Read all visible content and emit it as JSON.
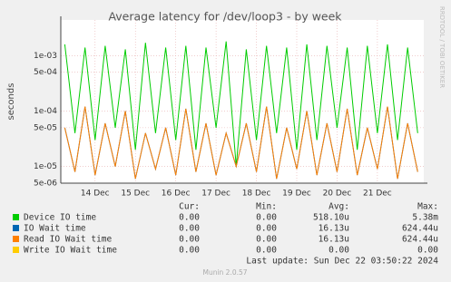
{
  "chart_data": {
    "type": "line",
    "title": "Average latency for /dev/loop3 - by week",
    "y_label": "seconds",
    "side_label": "RRDTOOL / TOBI OETIKER",
    "log_scale": true,
    "grid": true,
    "xlim": [
      13.15,
      22.15
    ],
    "xticks": [
      {
        "value": 14,
        "label": "14 Dec"
      },
      {
        "value": 15,
        "label": "15 Dec"
      },
      {
        "value": 16,
        "label": "16 Dec"
      },
      {
        "value": 17,
        "label": "17 Dec"
      },
      {
        "value": 18,
        "label": "18 Dec"
      },
      {
        "value": 19,
        "label": "19 Dec"
      },
      {
        "value": 20,
        "label": "20 Dec"
      },
      {
        "value": 21,
        "label": "21 Dec"
      }
    ],
    "ylim": [
      5e-06,
      0.0044
    ],
    "yticks": [
      {
        "value": 5e-06,
        "label": "5e-06"
      },
      {
        "value": 1e-05,
        "label": "1e-05"
      },
      {
        "value": 5e-05,
        "label": "5e-05"
      },
      {
        "value": 0.0001,
        "label": "1e-04"
      },
      {
        "value": 0.0005,
        "label": "5e-04"
      },
      {
        "value": 0.001,
        "label": "1e-03"
      }
    ],
    "x": [
      13.25,
      13.5,
      13.75,
      14,
      14.25,
      14.5,
      14.75,
      15,
      15.25,
      15.5,
      15.75,
      16,
      16.25,
      16.5,
      16.75,
      17,
      17.25,
      17.5,
      17.75,
      18,
      18.25,
      18.5,
      18.75,
      19,
      19.25,
      19.5,
      19.75,
      20,
      20.25,
      20.5,
      20.75,
      21,
      21.25,
      21.5,
      21.75,
      22
    ],
    "stat_headers": [
      "Cur:",
      "Min:",
      "Avg:",
      "Max:"
    ],
    "series": [
      {
        "name": "Device IO time",
        "color": "#00cc00",
        "stats": [
          "0.00",
          "0.00",
          "518.10u",
          "5.38m"
        ],
        "values": [
          0.0016,
          4e-05,
          0.0014,
          3e-05,
          0.0015,
          5e-05,
          0.0013,
          2e-05,
          0.0017,
          4e-05,
          0.0014,
          3e-05,
          0.0015,
          2e-05,
          0.0014,
          5e-05,
          0.0018,
          1e-05,
          0.0013,
          3e-05,
          0.0015,
          4e-05,
          0.0014,
          2e-05,
          0.0016,
          3e-05,
          0.0015,
          5e-05,
          0.0014,
          2e-05,
          0.0015,
          4e-05,
          0.0016,
          3e-05,
          0.0014,
          4e-05
        ]
      },
      {
        "name": "IO Wait time",
        "color": "#0066b3",
        "stats": [
          "0.00",
          "0.00",
          "16.13u",
          "624.44u"
        ],
        "values": [
          5e-05,
          8e-06,
          0.00012,
          7e-06,
          6e-05,
          1e-05,
          0.0001,
          6e-06,
          4e-05,
          9e-06,
          5e-05,
          7e-06,
          0.00011,
          8e-06,
          6e-05,
          7e-06,
          4e-05,
          1e-05,
          6e-05,
          8e-06,
          0.00012,
          6e-06,
          5e-05,
          9e-06,
          0.0001,
          7e-06,
          6e-05,
          8e-06,
          0.00011,
          7e-06,
          5e-05,
          9e-06,
          0.00012,
          6e-06,
          6e-05,
          8e-06
        ]
      },
      {
        "name": "Read IO Wait time",
        "color": "#ff8000",
        "stats": [
          "0.00",
          "0.00",
          "16.13u",
          "624.44u"
        ],
        "values": [
          5e-05,
          8e-06,
          0.00012,
          7e-06,
          6e-05,
          1e-05,
          0.0001,
          6e-06,
          4e-05,
          9e-06,
          5e-05,
          7e-06,
          0.00011,
          8e-06,
          6e-05,
          7e-06,
          4e-05,
          1e-05,
          6e-05,
          8e-06,
          0.00012,
          6e-06,
          5e-05,
          9e-06,
          0.0001,
          7e-06,
          6e-05,
          8e-06,
          0.00011,
          7e-06,
          5e-05,
          9e-06,
          0.00012,
          6e-06,
          6e-05,
          8e-06
        ]
      },
      {
        "name": "Write IO Wait time",
        "color": "#ffcc00",
        "stats": [
          "0.00",
          "0.00",
          "0.00",
          "0.00"
        ],
        "values": [
          null,
          null,
          null,
          null,
          null,
          null,
          null,
          null,
          null,
          null,
          null,
          null,
          null,
          null,
          null,
          null,
          null,
          null,
          null,
          null,
          null,
          null,
          null,
          null,
          null,
          null,
          null,
          null,
          null,
          null,
          null,
          null,
          null,
          null,
          null,
          null
        ]
      }
    ],
    "last_update": "Last update: Sun Dec 22 03:50:22 2024",
    "footer": "Munin 2.0.57"
  }
}
